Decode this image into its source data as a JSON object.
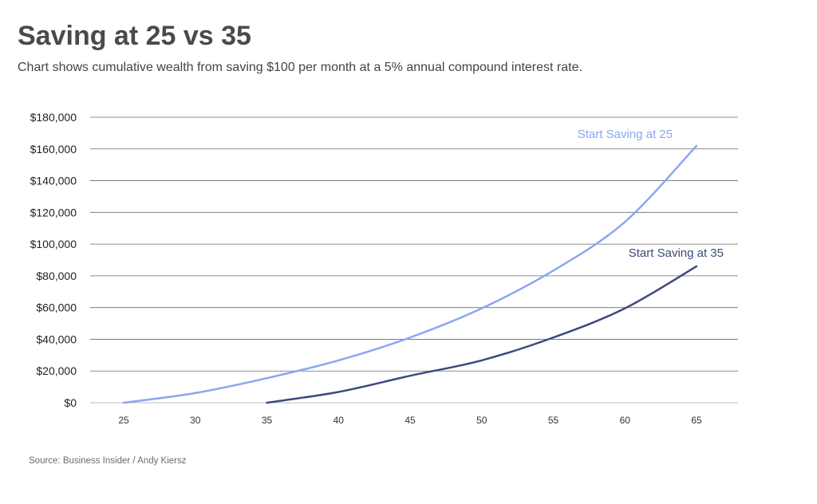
{
  "title": "Saving at 25 vs 35",
  "subtitle": "Chart shows cumulative wealth from saving $100 per month at a 5% annual compound interest rate.",
  "source": "Source: Business Insider / Andy Kiersz",
  "colors": {
    "start25": "#8aa6f2",
    "start35": "#3d4a7c",
    "grid": "#6a6a6a",
    "baseline": "#bdbdbd"
  },
  "chart_data": {
    "type": "line",
    "xlabel": "",
    "ylabel": "",
    "xlim": [
      22.5,
      67.5
    ],
    "ylim": [
      0,
      180000
    ],
    "x_ticks": [
      25,
      30,
      35,
      40,
      45,
      50,
      55,
      60,
      65
    ],
    "y_ticks": [
      0,
      20000,
      40000,
      60000,
      80000,
      100000,
      120000,
      140000,
      160000,
      180000
    ],
    "y_tick_labels": [
      "$0",
      "$20,000",
      "$40,000",
      "$60,000",
      "$80,000",
      "$100,000",
      "$120,000",
      "$140,000",
      "$160,000",
      "$180,000"
    ],
    "grid": "horizontal",
    "series": [
      {
        "name": "Start Saving at 25",
        "color": "#8aa6f2",
        "x": [
          25,
          30,
          35,
          40,
          45,
          50,
          55,
          60,
          65
        ],
        "y": [
          0,
          6100,
          15500,
          26700,
          41100,
          59500,
          83300,
          114000,
          162000
        ]
      },
      {
        "name": "Start Saving at 35",
        "color": "#3d4a7c",
        "x": [
          35,
          40,
          45,
          50,
          55,
          60,
          65
        ],
        "y": [
          0,
          6800,
          17000,
          26700,
          41100,
          59500,
          86000
        ]
      }
    ]
  }
}
